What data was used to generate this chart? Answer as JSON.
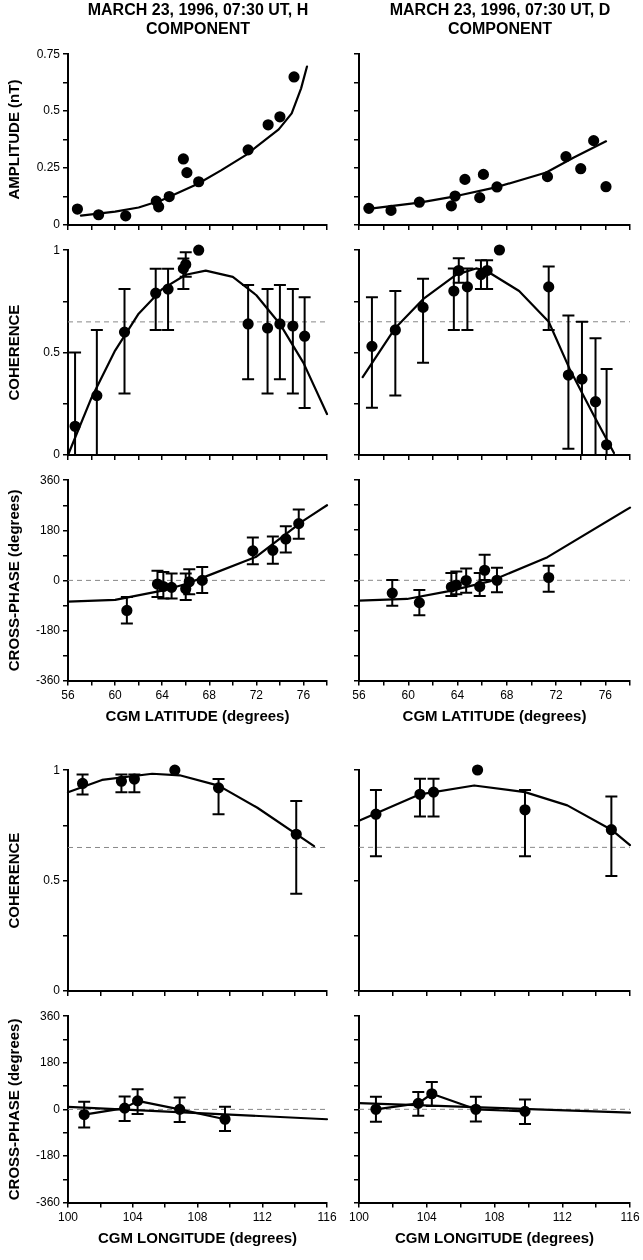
{
  "chart_data": [
    {
      "type": "scatter",
      "title": "MARCH 23, 1996, 07:30 UT, H COMPONENT",
      "ylabel": "AMPLITUDE (nT)",
      "tick_labels": "y",
      "xlim": [
        56,
        78
      ],
      "xticks": [
        56,
        {
          "value": 58,
          "label": null
        },
        60,
        {
          "value": 62,
          "label": null
        },
        64,
        {
          "value": 66,
          "label": null
        },
        68,
        {
          "value": 70,
          "label": null
        },
        72,
        {
          "value": 74,
          "label": null
        },
        76,
        {
          "value": 78,
          "label": null
        }
      ],
      "ylim": [
        0,
        0.75
      ],
      "yticks": [
        0,
        {
          "value": 0.125,
          "label": null
        },
        0.25,
        {
          "value": 0.375,
          "label": null
        },
        0.5,
        {
          "value": 0.625,
          "label": null
        },
        0.75
      ],
      "series": [
        {
          "type": "scatter",
          "color": "#000000",
          "marker": "circle",
          "x": [
            56.8,
            58.6,
            60.9,
            63.5,
            63.7,
            64.6,
            65.8,
            66.1,
            67.1,
            71.3,
            73.0,
            74.0,
            75.2
          ],
          "values": [
            0.07,
            0.045,
            0.04,
            0.105,
            0.08,
            0.125,
            0.29,
            0.23,
            0.19,
            0.33,
            0.44,
            0.475,
            0.65
          ]
        },
        {
          "type": "line",
          "color": "#000000",
          "marker": "none",
          "x": [
            57.1,
            60,
            62,
            64,
            67,
            69,
            71.1,
            73.9,
            75.0,
            75.8,
            76.3
          ],
          "values": [
            0.041,
            0.059,
            0.077,
            0.11,
            0.18,
            0.24,
            0.307,
            0.42,
            0.49,
            0.6,
            0.696
          ]
        }
      ]
    },
    {
      "type": "scatter",
      "title": "MARCH 23, 1996, 07:30 UT, D COMPONENT",
      "tick_labels": false,
      "xlim": [
        56,
        78
      ],
      "xticks": [
        56,
        {
          "value": 58,
          "label": null
        },
        60,
        {
          "value": 62,
          "label": null
        },
        64,
        {
          "value": 66,
          "label": null
        },
        68,
        {
          "value": 70,
          "label": null
        },
        72,
        {
          "value": 74,
          "label": null
        },
        76,
        {
          "value": 78,
          "label": null
        }
      ],
      "ylim": [
        0,
        0.75
      ],
      "yticks": [
        0,
        {
          "value": 0.125,
          "label": null
        },
        0.25,
        {
          "value": 0.375,
          "label": null
        },
        0.5,
        {
          "value": 0.625,
          "label": null
        },
        0.75
      ],
      "series": [
        {
          "type": "scatter",
          "color": "#000000",
          "marker": "circle",
          "x": [
            56.8,
            58.6,
            60.9,
            63.5,
            63.8,
            64.6,
            65.8,
            66.1,
            67.2,
            71.3,
            72.8,
            74.0,
            75.05,
            76.05
          ],
          "values": [
            0.073,
            0.064,
            0.1,
            0.084,
            0.127,
            0.2,
            0.12,
            0.222,
            0.167,
            0.212,
            0.3,
            0.247,
            0.37,
            0.168
          ]
        },
        {
          "type": "line",
          "color": "#000000",
          "marker": "none",
          "x": [
            56.6,
            60.9,
            63.9,
            67.1,
            71.2,
            73.4,
            76.05
          ],
          "values": [
            0.07,
            0.098,
            0.127,
            0.165,
            0.23,
            0.295,
            0.367
          ]
        }
      ]
    },
    {
      "type": "scatter",
      "ylabel": "COHERENCE",
      "tick_labels": "y",
      "xlim": [
        56,
        78
      ],
      "xticks": [
        56,
        {
          "value": 58,
          "label": null
        },
        60,
        {
          "value": 62,
          "label": null
        },
        64,
        {
          "value": 66,
          "label": null
        },
        68,
        {
          "value": 70,
          "label": null
        },
        72,
        {
          "value": 74,
          "label": null
        },
        76,
        {
          "value": 78,
          "label": null
        }
      ],
      "ylim": [
        0,
        1
      ],
      "yticks": [
        0,
        {
          "value": 0.25,
          "label": null
        },
        0.5,
        {
          "value": 0.75,
          "label": null
        },
        1
      ],
      "ref_lines": [
        {
          "axis": "y",
          "value": 0.65,
          "color": "#888888",
          "line_style": "dashed"
        }
      ],
      "series": [
        {
          "type": "scatter",
          "color": "#000000",
          "marker": "circle",
          "x": [
            56.6,
            58.45,
            60.8,
            63.45,
            64.5,
            65.8,
            66.0,
            67.1,
            71.3,
            72.95,
            74.0,
            75.1,
            76.1
          ],
          "values": [
            0.14,
            0.29,
            0.6,
            0.79,
            0.81,
            0.91,
            0.93,
            1.0,
            0.64,
            0.62,
            0.64,
            0.63,
            0.58
          ],
          "errors": [
            [
              0,
              0.5
            ],
            [
              0,
              0.61
            ],
            [
              0.3,
              0.81
            ],
            [
              0.61,
              0.91
            ],
            [
              0.61,
              0.91
            ],
            [
              0.81,
              0.96
            ],
            [
              0.87,
              0.99
            ],
            null,
            [
              0.37,
              0.83
            ],
            [
              0.3,
              0.81
            ],
            [
              0.37,
              0.83
            ],
            [
              0.3,
              0.81
            ],
            [
              0.23,
              0.77
            ]
          ]
        },
        {
          "type": "line",
          "color": "#000000",
          "marker": "none",
          "x": [
            56,
            58,
            60,
            62,
            64,
            66,
            67.7,
            70,
            72,
            74,
            76,
            78
          ],
          "values": [
            0,
            0.28,
            0.51,
            0.69,
            0.81,
            0.88,
            0.9,
            0.87,
            0.78,
            0.64,
            0.45,
            0.2
          ]
        }
      ]
    },
    {
      "type": "scatter",
      "tick_labels": false,
      "xlim": [
        56,
        78
      ],
      "xticks": [
        56,
        {
          "value": 58,
          "label": null
        },
        60,
        {
          "value": 62,
          "label": null
        },
        64,
        {
          "value": 66,
          "label": null
        },
        68,
        {
          "value": 70,
          "label": null
        },
        72,
        {
          "value": 74,
          "label": null
        },
        76,
        {
          "value": 78,
          "label": null
        }
      ],
      "ylim": [
        0,
        1
      ],
      "yticks": [
        0,
        {
          "value": 0.25,
          "label": null
        },
        0.5,
        {
          "value": 0.75,
          "label": null
        },
        1
      ],
      "ref_lines": [
        {
          "axis": "y",
          "value": 0.65,
          "color": "#888888",
          "line_style": "dashed"
        }
      ],
      "series": [
        {
          "type": "scatter",
          "color": "#000000",
          "marker": "circle",
          "x": [
            57.05,
            58.95,
            61.2,
            63.7,
            64.1,
            64.8,
            65.9,
            66.4,
            67.4,
            71.4,
            73.0,
            74.1,
            75.2,
            76.1
          ],
          "values": [
            0.53,
            0.61,
            0.72,
            0.8,
            0.9,
            0.82,
            0.88,
            0.9,
            1.0,
            0.82,
            0.39,
            0.37,
            0.26,
            0.05
          ],
          "errors": [
            [
              0.23,
              0.77
            ],
            [
              0.29,
              0.8
            ],
            [
              0.45,
              0.86
            ],
            [
              0.61,
              0.91
            ],
            [
              0.84,
              0.96
            ],
            [
              0.61,
              0.91
            ],
            [
              0.81,
              0.95
            ],
            [
              0.81,
              0.95
            ],
            null,
            [
              0.61,
              0.92
            ],
            [
              0.03,
              0.68
            ],
            [
              0,
              0.65
            ],
            [
              0,
              0.57
            ],
            [
              0,
              0.42
            ]
          ]
        },
        {
          "type": "line",
          "color": "#000000",
          "marker": "none",
          "x": [
            56.3,
            58.95,
            61.2,
            63.9,
            65.5,
            66.3,
            69,
            71.4,
            73.1,
            75,
            76.7
          ],
          "values": [
            0.38,
            0.62,
            0.76,
            0.88,
            0.91,
            0.9,
            0.8,
            0.65,
            0.42,
            0.2,
            0.01
          ]
        }
      ]
    },
    {
      "type": "scatter",
      "xlabel": "CGM LATITUDE (degrees)",
      "ylabel": "CROSS-PHASE (degrees)",
      "xlim": [
        56,
        78
      ],
      "xticks": [
        56,
        {
          "value": 58,
          "label": null
        },
        60,
        {
          "value": 62,
          "label": null
        },
        64,
        {
          "value": 66,
          "label": null
        },
        68,
        {
          "value": 70,
          "label": null
        },
        72,
        {
          "value": 74,
          "label": null
        },
        76,
        {
          "value": 78,
          "label": null
        }
      ],
      "ylim": [
        -360,
        360
      ],
      "yticks": [
        -360,
        {
          "value": -270,
          "label": null
        },
        -180,
        {
          "value": -90,
          "label": null
        },
        0,
        {
          "value": 90,
          "label": null
        },
        180,
        {
          "value": 270,
          "label": null
        },
        360
      ],
      "ref_lines": [
        {
          "axis": "y",
          "value": 0,
          "color": "#888888",
          "line_style": "dashed"
        }
      ],
      "series": [
        {
          "type": "scatter",
          "color": "#000000",
          "marker": "circle",
          "x": [
            61.0,
            63.6,
            64.1,
            64.8,
            66.0,
            66.3,
            67.4,
            71.7,
            73.4,
            74.5,
            75.6
          ],
          "values": [
            -108,
            -13,
            -22,
            -25,
            -30,
            -5,
            0,
            106,
            108,
            149,
            204
          ],
          "errors": [
            [
              -155,
              -60
            ],
            [
              -60,
              35
            ],
            [
              -65,
              30
            ],
            [
              -65,
              25
            ],
            [
              -70,
              25
            ],
            [
              -50,
              40
            ],
            [
              -45,
              48
            ],
            [
              58,
              154
            ],
            [
              60,
              158
            ],
            [
              100,
              195
            ],
            [
              150,
              255
            ]
          ]
        },
        {
          "type": "line",
          "color": "#000000",
          "marker": "none",
          "x": [
            56,
            60,
            64,
            66,
            68,
            72,
            76,
            78
          ],
          "values": [
            -76,
            -70,
            -37,
            -13,
            19,
            85,
            215,
            270
          ]
        }
      ]
    },
    {
      "type": "scatter",
      "xlabel": "CGM LATITUDE (degrees)",
      "tick_labels": "x",
      "xlim": [
        56,
        78
      ],
      "xticks": [
        56,
        {
          "value": 58,
          "label": null
        },
        60,
        {
          "value": 62,
          "label": null
        },
        64,
        {
          "value": 66,
          "label": null
        },
        68,
        {
          "value": 70,
          "label": null
        },
        72,
        {
          "value": 74,
          "label": null
        },
        76,
        {
          "value": 78,
          "label": null
        }
      ],
      "ylim": [
        -360,
        360
      ],
      "yticks": [
        -360,
        {
          "value": -270,
          "label": null
        },
        -180,
        {
          "value": -90,
          "label": null
        },
        0,
        {
          "value": 90,
          "label": null
        },
        180,
        {
          "value": 270,
          "label": null
        },
        360
      ],
      "ref_lines": [
        {
          "axis": "y",
          "value": 0,
          "color": "#888888",
          "line_style": "dashed"
        }
      ],
      "series": [
        {
          "type": "scatter",
          "color": "#000000",
          "marker": "circle",
          "x": [
            58.7,
            60.9,
            63.5,
            63.9,
            64.7,
            65.8,
            66.2,
            67.2,
            71.4
          ],
          "values": [
            -46,
            -80,
            -24,
            -17,
            -1,
            -22,
            36,
            0,
            10
          ],
          "errors": [
            [
              -91,
              1
            ],
            [
              -125,
              -35
            ],
            [
              -56,
              26
            ],
            [
              -50,
              32
            ],
            [
              -45,
              42
            ],
            [
              -56,
              26
            ],
            [
              1,
              92
            ],
            [
              -43,
              45
            ],
            [
              -41,
              52
            ]
          ]
        },
        {
          "type": "line",
          "color": "#000000",
          "marker": "none",
          "x": [
            56,
            59.9,
            63.2,
            66.6,
            71.3,
            78
          ],
          "values": [
            -73,
            -67,
            -40,
            -4,
            83,
            261
          ]
        }
      ]
    },
    {
      "type": "scatter",
      "ylabel": "COHERENCE",
      "tick_labels": "y",
      "xlim": [
        100,
        116
      ],
      "xticks": [
        100,
        {
          "value": 102,
          "label": null
        },
        104,
        {
          "value": 106,
          "label": null
        },
        108,
        {
          "value": 110,
          "label": null
        },
        112,
        {
          "value": 114,
          "label": null
        },
        116
      ],
      "ylim": [
        0,
        1
      ],
      "yticks": [
        0,
        {
          "value": 0.25,
          "label": null
        },
        0.5,
        {
          "value": 0.75,
          "label": null
        },
        1
      ],
      "ref_lines": [
        {
          "axis": "y",
          "value": 0.65,
          "color": "#888888",
          "line_style": "dashed"
        }
      ],
      "series": [
        {
          "type": "scatter",
          "color": "#000000",
          "marker": "circle",
          "x": [
            100.9,
            103.3,
            104.1,
            106.6,
            109.3,
            114.1
          ],
          "values": [
            0.94,
            0.95,
            0.96,
            1.0,
            0.92,
            0.71
          ],
          "errors": [
            [
              0.89,
              0.98
            ],
            [
              0.9,
              0.98
            ],
            [
              0.9,
              0.98
            ],
            null,
            [
              0.8,
              0.96
            ],
            [
              0.44,
              0.86
            ]
          ]
        },
        {
          "type": "line",
          "color": "#000000",
          "marker": "none",
          "x": [
            100,
            102.1,
            105.2,
            106.9,
            109.3,
            111.7,
            115.2
          ],
          "values": [
            0.9,
            0.956,
            0.984,
            0.977,
            0.93,
            0.83,
            0.656
          ]
        }
      ]
    },
    {
      "type": "scatter",
      "tick_labels": false,
      "xlim": [
        100,
        116
      ],
      "xticks": [
        100,
        {
          "value": 102,
          "label": null
        },
        104,
        {
          "value": 106,
          "label": null
        },
        108,
        {
          "value": 110,
          "label": null
        },
        112,
        {
          "value": 114,
          "label": null
        },
        116
      ],
      "ylim": [
        0,
        1
      ],
      "yticks": [
        0,
        {
          "value": 0.25,
          "label": null
        },
        0.5,
        {
          "value": 0.75,
          "label": null
        },
        1
      ],
      "ref_lines": [
        {
          "axis": "y",
          "value": 0.65,
          "color": "#888888",
          "line_style": "dashed"
        }
      ],
      "series": [
        {
          "type": "scatter",
          "color": "#000000",
          "marker": "circle",
          "x": [
            101,
            103.6,
            104.4,
            107,
            109.8,
            114.9
          ],
          "values": [
            0.8,
            0.89,
            0.9,
            1.0,
            0.82,
            0.73
          ],
          "errors": [
            [
              0.61,
              0.91
            ],
            [
              0.79,
              0.96
            ],
            [
              0.79,
              0.96
            ],
            null,
            [
              0.61,
              0.91
            ],
            [
              0.52,
              0.88
            ]
          ]
        },
        {
          "type": "line",
          "color": "#000000",
          "marker": "none",
          "x": [
            100,
            103.6,
            106.8,
            109.8,
            112.3,
            114.9,
            116
          ],
          "values": [
            0.77,
            0.89,
            0.93,
            0.9,
            0.84,
            0.73,
            0.66
          ]
        }
      ]
    },
    {
      "type": "scatter",
      "xlabel": "CGM LONGITUDE (degrees)",
      "ylabel": "CROSS-PHASE (degrees)",
      "xlim": [
        100,
        116
      ],
      "xticks": [
        100,
        {
          "value": 102,
          "label": null
        },
        104,
        {
          "value": 106,
          "label": null
        },
        108,
        {
          "value": 110,
          "label": null
        },
        112,
        {
          "value": 114,
          "label": null
        },
        116
      ],
      "ylim": [
        -360,
        360
      ],
      "yticks": [
        -360,
        {
          "value": -270,
          "label": null
        },
        -180,
        {
          "value": -90,
          "label": null
        },
        0,
        {
          "value": 90,
          "label": null
        },
        180,
        {
          "value": 270,
          "label": null
        },
        360
      ],
      "ref_lines": [
        {
          "axis": "y",
          "value": 0,
          "color": "#888888",
          "line_style": "dashed"
        }
      ],
      "series": [
        {
          "type": "line",
          "color": "#000000",
          "marker": "circle",
          "x": [
            101,
            103.5,
            104.3,
            106.9,
            109.7
          ],
          "values": [
            -20,
            5,
            33,
            0,
            -38
          ],
          "errors": [
            [
              -70,
              30
            ],
            [
              -45,
              50
            ],
            [
              -18,
              78
            ],
            [
              -49,
              46
            ],
            [
              -83,
              10
            ]
          ]
        },
        {
          "type": "line",
          "color": "#000000",
          "marker": "none",
          "x": [
            100,
            116
          ],
          "values": [
            10,
            -38
          ]
        }
      ]
    },
    {
      "type": "scatter",
      "xlabel": "CGM LONGITUDE (degrees)",
      "tick_labels": "x",
      "xlim": [
        100,
        116
      ],
      "xticks": [
        100,
        {
          "value": 102,
          "label": null
        },
        104,
        {
          "value": 106,
          "label": null
        },
        108,
        {
          "value": 110,
          "label": null
        },
        112,
        {
          "value": 114,
          "label": null
        },
        116
      ],
      "ylim": [
        -360,
        360
      ],
      "yticks": [
        -360,
        {
          "value": -270,
          "label": null
        },
        -180,
        {
          "value": -90,
          "label": null
        },
        0,
        {
          "value": 90,
          "label": null
        },
        180,
        {
          "value": 270,
          "label": null
        },
        360
      ],
      "ref_lines": [
        {
          "axis": "y",
          "value": 0,
          "color": "#888888",
          "line_style": "dashed"
        }
      ],
      "series": [
        {
          "type": "line",
          "color": "#000000",
          "marker": "circle",
          "x": [
            101,
            103.5,
            104.3,
            106.9,
            109.8
          ],
          "values": [
            0,
            23,
            60,
            0,
            -8
          ],
          "errors": [
            [
              -48,
              48
            ],
            [
              -25,
              67
            ],
            [
              13,
              105
            ],
            [
              -47,
              48
            ],
            [
              -57,
              38
            ]
          ]
        },
        {
          "type": "line",
          "color": "#000000",
          "marker": "none",
          "x": [
            100,
            116
          ],
          "values": [
            24,
            -13
          ]
        }
      ]
    }
  ]
}
